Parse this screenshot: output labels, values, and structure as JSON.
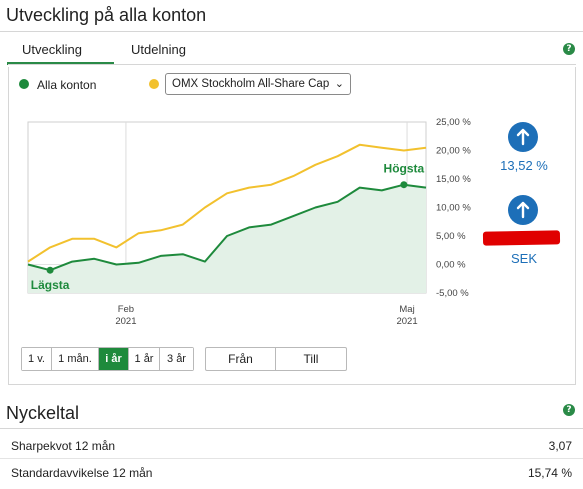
{
  "header": {
    "title": "Utveckling på alla konton"
  },
  "tabs": [
    {
      "label": "Utveckling",
      "active": true
    },
    {
      "label": "Utdelning",
      "active": false
    }
  ],
  "legend": {
    "series1_label": "Alla konton",
    "series1_color": "#1e8a3c",
    "series2_color": "#f2c12e",
    "index_select_value": "OMX Stockholm All-Share Cap"
  },
  "stats": {
    "percent_value": "13,52 %",
    "sek_label": "SEK",
    "up_icon": "arrow-up-icon",
    "accent_color": "#1d6fb8"
  },
  "period_buttons": [
    "1 v.",
    "1 mån.",
    "i år",
    "1 år",
    "3 år"
  ],
  "active_period": "i år",
  "date_buttons": {
    "from": "Från",
    "to": "Till"
  },
  "nyckeltal": {
    "title": "Nyckeltal",
    "rows": [
      {
        "label": "Sharpekvot 12 mån",
        "value": "3,07"
      },
      {
        "label": "Standardavvikelse 12 mån",
        "value": "15,74 %"
      }
    ]
  },
  "chart_data": {
    "type": "line",
    "x": [
      "2021-01-01",
      "2021-01-08",
      "2021-01-15",
      "2021-01-22",
      "2021-01-29",
      "2021-02-05",
      "2021-02-12",
      "2021-02-19",
      "2021-02-26",
      "2021-03-05",
      "2021-03-12",
      "2021-03-19",
      "2021-03-26",
      "2021-04-02",
      "2021-04-09",
      "2021-04-16",
      "2021-04-23",
      "2021-04-30",
      "2021-05-07"
    ],
    "series": [
      {
        "name": "Alla konton",
        "color": "#1e8a3c",
        "values": [
          0.0,
          -1.0,
          0.5,
          1.0,
          0.0,
          0.3,
          1.5,
          1.8,
          0.5,
          5.0,
          6.5,
          7.0,
          8.5,
          10.0,
          11.0,
          13.5,
          13.0,
          14.0,
          13.5
        ]
      },
      {
        "name": "OMX Stockholm All-Share Cap",
        "color": "#f2c12e",
        "values": [
          0.5,
          3.0,
          4.5,
          4.5,
          3.0,
          5.5,
          6.0,
          7.0,
          10.0,
          12.5,
          13.5,
          14.0,
          15.5,
          17.5,
          19.0,
          21.0,
          20.5,
          20.0,
          20.5
        ]
      }
    ],
    "x_tick_labels": [
      {
        "label": "Feb",
        "sub": "2021"
      },
      {
        "label": "Maj",
        "sub": "2021"
      }
    ],
    "y_tick_labels": [
      "25,00 %",
      "20,00 %",
      "15,00 %",
      "10,00 %",
      "5,00 %",
      "0,00 %",
      "-5,00 %"
    ],
    "y_ticks": [
      25,
      20,
      15,
      10,
      5,
      0,
      -5
    ],
    "ylim": [
      -5,
      25
    ],
    "annotations": [
      {
        "text": "Högsta",
        "series": 0,
        "index": 17
      },
      {
        "text": "Lägsta",
        "series": 0,
        "index": 1
      }
    ],
    "grid": true
  }
}
